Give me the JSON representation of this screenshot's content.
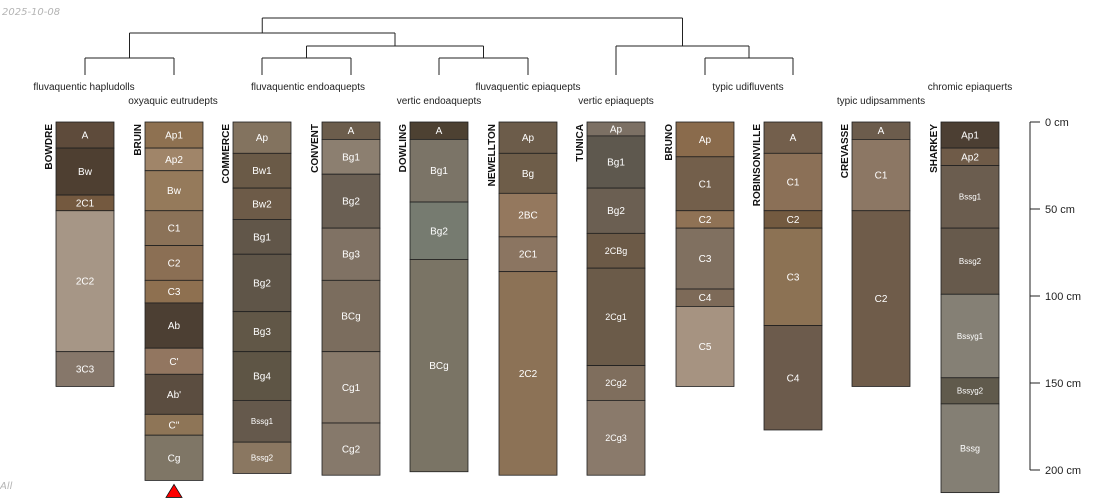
{
  "date_stamp": "2025-10-08",
  "footer_mark": "All",
  "chart_data": {
    "type": "soil-profile-sketch",
    "units": "cm",
    "depth_axis": {
      "ticks": [
        0,
        50,
        100,
        150,
        200
      ],
      "labels": [
        "0 cm",
        "50 cm",
        "100 cm",
        "150 cm",
        "200 cm"
      ]
    },
    "taxa": [
      "fluvaquentic hapludolls",
      "oxyaquic eutrudepts",
      "fluvaquentic endoaquepts",
      "vertic endoaquepts",
      "fluvaquentic epiaquepts",
      "vertic epiaquepts",
      "typic udifluvents",
      "typic udipsamments",
      "chromic epiaquerts"
    ],
    "dendrogram": {
      "tree": [
        [
          [
            0,
            1
          ],
          [
            [
              2,
              3
            ],
            [
              4,
              5
            ]
          ]
        ],
        [
          6,
          [
            7,
            8
          ]
        ]
      ]
    },
    "profiles": [
      {
        "name": "BOWDRE",
        "horizons": [
          {
            "label": "A",
            "top": 0,
            "bottom": 15,
            "color": "#5e4b3b"
          },
          {
            "label": "Bw",
            "top": 15,
            "bottom": 42,
            "color": "#4e3f31"
          },
          {
            "label": "2C1",
            "top": 42,
            "bottom": 51,
            "color": "#74593f"
          },
          {
            "label": "2C2",
            "top": 51,
            "bottom": 132,
            "color": "#a69686"
          },
          {
            "label": "3C3",
            "top": 132,
            "bottom": 152,
            "color": "#86776a"
          }
        ]
      },
      {
        "name": "BRUIN",
        "horizons": [
          {
            "label": "Ap1",
            "top": 0,
            "bottom": 15,
            "color": "#8e7151"
          },
          {
            "label": "Ap2",
            "top": 15,
            "bottom": 28,
            "color": "#a08569"
          },
          {
            "label": "Bw",
            "top": 28,
            "bottom": 51,
            "color": "#957a5b"
          },
          {
            "label": "C1",
            "top": 51,
            "bottom": 71,
            "color": "#8b7258"
          },
          {
            "label": "C2",
            "top": 71,
            "bottom": 91,
            "color": "#8b6f54"
          },
          {
            "label": "C3",
            "top": 91,
            "bottom": 104,
            "color": "#8e7050"
          },
          {
            "label": "Ab",
            "top": 104,
            "bottom": 130,
            "color": "#4c3f33"
          },
          {
            "label": "C'",
            "top": 130,
            "bottom": 145,
            "color": "#927660"
          },
          {
            "label": "Ab'",
            "top": 145,
            "bottom": 168,
            "color": "#5b4d40"
          },
          {
            "label": "C''",
            "top": 168,
            "bottom": 180,
            "color": "#8e7557"
          },
          {
            "label": "Cg",
            "top": 180,
            "bottom": 206,
            "color": "#7f7666"
          }
        ]
      },
      {
        "name": "COMMERCE",
        "horizons": [
          {
            "label": "Ap",
            "top": 0,
            "bottom": 18,
            "color": "#83735f"
          },
          {
            "label": "Bw1",
            "top": 18,
            "bottom": 38,
            "color": "#6a5a47"
          },
          {
            "label": "Bw2",
            "top": 38,
            "bottom": 56,
            "color": "#6d5b48"
          },
          {
            "label": "Bg1",
            "top": 56,
            "bottom": 76,
            "color": "#615649"
          },
          {
            "label": "Bg2",
            "top": 76,
            "bottom": 109,
            "color": "#5f5548"
          },
          {
            "label": "Bg3",
            "top": 109,
            "bottom": 132,
            "color": "#615747"
          },
          {
            "label": "Bg4",
            "top": 132,
            "bottom": 160,
            "color": "#5e5545"
          },
          {
            "label": "Bssg1",
            "top": 160,
            "bottom": 184,
            "color": "#65594c"
          },
          {
            "label": "Bssg2",
            "top": 184,
            "bottom": 202,
            "color": "#8a7761"
          }
        ]
      },
      {
        "name": "CONVENT",
        "horizons": [
          {
            "label": "A",
            "top": 0,
            "bottom": 10,
            "color": "#6c5d4c"
          },
          {
            "label": "Bg1",
            "top": 10,
            "bottom": 30,
            "color": "#8c7f70"
          },
          {
            "label": "Bg2",
            "top": 30,
            "bottom": 61,
            "color": "#6a5f53"
          },
          {
            "label": "Bg3",
            "top": 61,
            "bottom": 91,
            "color": "#807264"
          },
          {
            "label": "BCg",
            "top": 91,
            "bottom": 132,
            "color": "#7b6d5e"
          },
          {
            "label": "Cg1",
            "top": 132,
            "bottom": 173,
            "color": "#887a6b"
          },
          {
            "label": "Cg2",
            "top": 173,
            "bottom": 203,
            "color": "#86796b"
          }
        ]
      },
      {
        "name": "DOWLING",
        "horizons": [
          {
            "label": "A",
            "top": 0,
            "bottom": 10,
            "color": "#4d4132"
          },
          {
            "label": "Bg1",
            "top": 10,
            "bottom": 46,
            "color": "#7b7467"
          },
          {
            "label": "Bg2",
            "top": 46,
            "bottom": 79,
            "color": "#767b70"
          },
          {
            "label": "BCg",
            "top": 79,
            "bottom": 201,
            "color": "#7a7465"
          }
        ]
      },
      {
        "name": "NEWELLTON",
        "horizons": [
          {
            "label": "Ap",
            "top": 0,
            "bottom": 18,
            "color": "#6c5c4a"
          },
          {
            "label": "Bg",
            "top": 18,
            "bottom": 41,
            "color": "#6e5d49"
          },
          {
            "label": "2BC",
            "top": 41,
            "bottom": 66,
            "color": "#94785e"
          },
          {
            "label": "2C1",
            "top": 66,
            "bottom": 86,
            "color": "#8b7561"
          },
          {
            "label": "2C2",
            "top": 86,
            "bottom": 203,
            "color": "#8c7256"
          }
        ]
      },
      {
        "name": "TUNICA",
        "horizons": [
          {
            "label": "Ap",
            "top": 0,
            "bottom": 8,
            "color": "#7c7064"
          },
          {
            "label": "Bg1",
            "top": 8,
            "bottom": 38,
            "color": "#5e584e"
          },
          {
            "label": "Bg2",
            "top": 38,
            "bottom": 64,
            "color": "#6b5f52"
          },
          {
            "label": "2CBg",
            "top": 64,
            "bottom": 84,
            "color": "#6c5a47"
          },
          {
            "label": "2Cg1",
            "top": 84,
            "bottom": 140,
            "color": "#6b5b49"
          },
          {
            "label": "2Cg2",
            "top": 140,
            "bottom": 160,
            "color": "#7f6e5d"
          },
          {
            "label": "2Cg3",
            "top": 160,
            "bottom": 203,
            "color": "#8a7a6b"
          }
        ]
      },
      {
        "name": "BRUNO",
        "horizons": [
          {
            "label": "Ap",
            "top": 0,
            "bottom": 20,
            "color": "#8a6b4c"
          },
          {
            "label": "C1",
            "top": 20,
            "bottom": 51,
            "color": "#735f4b"
          },
          {
            "label": "C2",
            "top": 51,
            "bottom": 61,
            "color": "#8f7255"
          },
          {
            "label": "C3",
            "top": 61,
            "bottom": 96,
            "color": "#807060"
          },
          {
            "label": "C4",
            "top": 96,
            "bottom": 106,
            "color": "#7d6a58"
          },
          {
            "label": "C5",
            "top": 106,
            "bottom": 152,
            "color": "#a69381"
          }
        ]
      },
      {
        "name": "ROBINSONVILLE",
        "horizons": [
          {
            "label": "A",
            "top": 0,
            "bottom": 18,
            "color": "#735f4c"
          },
          {
            "label": "C1",
            "top": 18,
            "bottom": 51,
            "color": "#8b7057"
          },
          {
            "label": "C2",
            "top": 51,
            "bottom": 61,
            "color": "#735a40"
          },
          {
            "label": "C3",
            "top": 61,
            "bottom": 117,
            "color": "#8c7254"
          },
          {
            "label": "C4",
            "top": 117,
            "bottom": 177,
            "color": "#6c5b4c"
          }
        ]
      },
      {
        "name": "CREVASSE",
        "horizons": [
          {
            "label": "A",
            "top": 0,
            "bottom": 10,
            "color": "#6c5c4c"
          },
          {
            "label": "C1",
            "top": 10,
            "bottom": 51,
            "color": "#8c7764"
          },
          {
            "label": "C2",
            "top": 51,
            "bottom": 152,
            "color": "#6f5c4a"
          }
        ]
      },
      {
        "name": "SHARKEY",
        "horizons": [
          {
            "label": "Ap1",
            "top": 0,
            "bottom": 15,
            "color": "#4c3f33"
          },
          {
            "label": "Ap2",
            "top": 15,
            "bottom": 25,
            "color": "#6f5b48"
          },
          {
            "label": "Bssg1",
            "top": 25,
            "bottom": 61,
            "color": "#6b5d4f"
          },
          {
            "label": "Bssg2",
            "top": 61,
            "bottom": 99,
            "color": "#675a4c"
          },
          {
            "label": "Bssyg1",
            "top": 99,
            "bottom": 147,
            "color": "#858075"
          },
          {
            "label": "Bssyg2",
            "top": 147,
            "bottom": 162,
            "color": "#605a4c"
          },
          {
            "label": "Bssg",
            "top": 162,
            "bottom": 213,
            "color": "#847f74"
          }
        ]
      }
    ],
    "markers": [
      {
        "profile": "BRUIN",
        "shape": "triangle",
        "color": "#ff0000"
      }
    ]
  }
}
